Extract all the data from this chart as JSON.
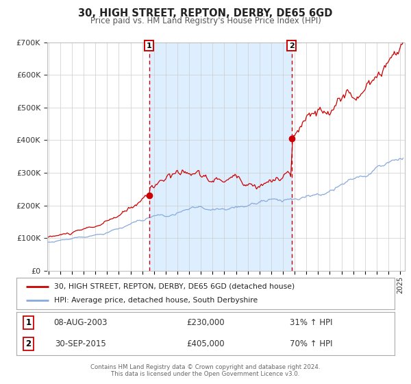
{
  "title": "30, HIGH STREET, REPTON, DERBY, DE65 6GD",
  "subtitle": "Price paid vs. HM Land Registry's House Price Index (HPI)",
  "sale1_date": "08-AUG-2003",
  "sale1_price": 230000,
  "sale1_hpi_pct": "31% ↑ HPI",
  "sale2_date": "30-SEP-2015",
  "sale2_price": 405000,
  "sale2_hpi_pct": "70% ↑ HPI",
  "sale1_x": 2003.583,
  "sale2_x": 2015.75,
  "legend_line1": "30, HIGH STREET, REPTON, DERBY, DE65 6GD (detached house)",
  "legend_line2": "HPI: Average price, detached house, South Derbyshire",
  "footer1": "Contains HM Land Registry data © Crown copyright and database right 2024.",
  "footer2": "This data is licensed under the Open Government Licence v3.0.",
  "line_color_red": "#cc0000",
  "line_color_blue": "#88aadd",
  "shaded_region_color": "#ddeeff",
  "grid_color": "#cccccc",
  "ylim": [
    0,
    700000
  ],
  "xlim_start": 1994.9,
  "xlim_end": 2025.4
}
